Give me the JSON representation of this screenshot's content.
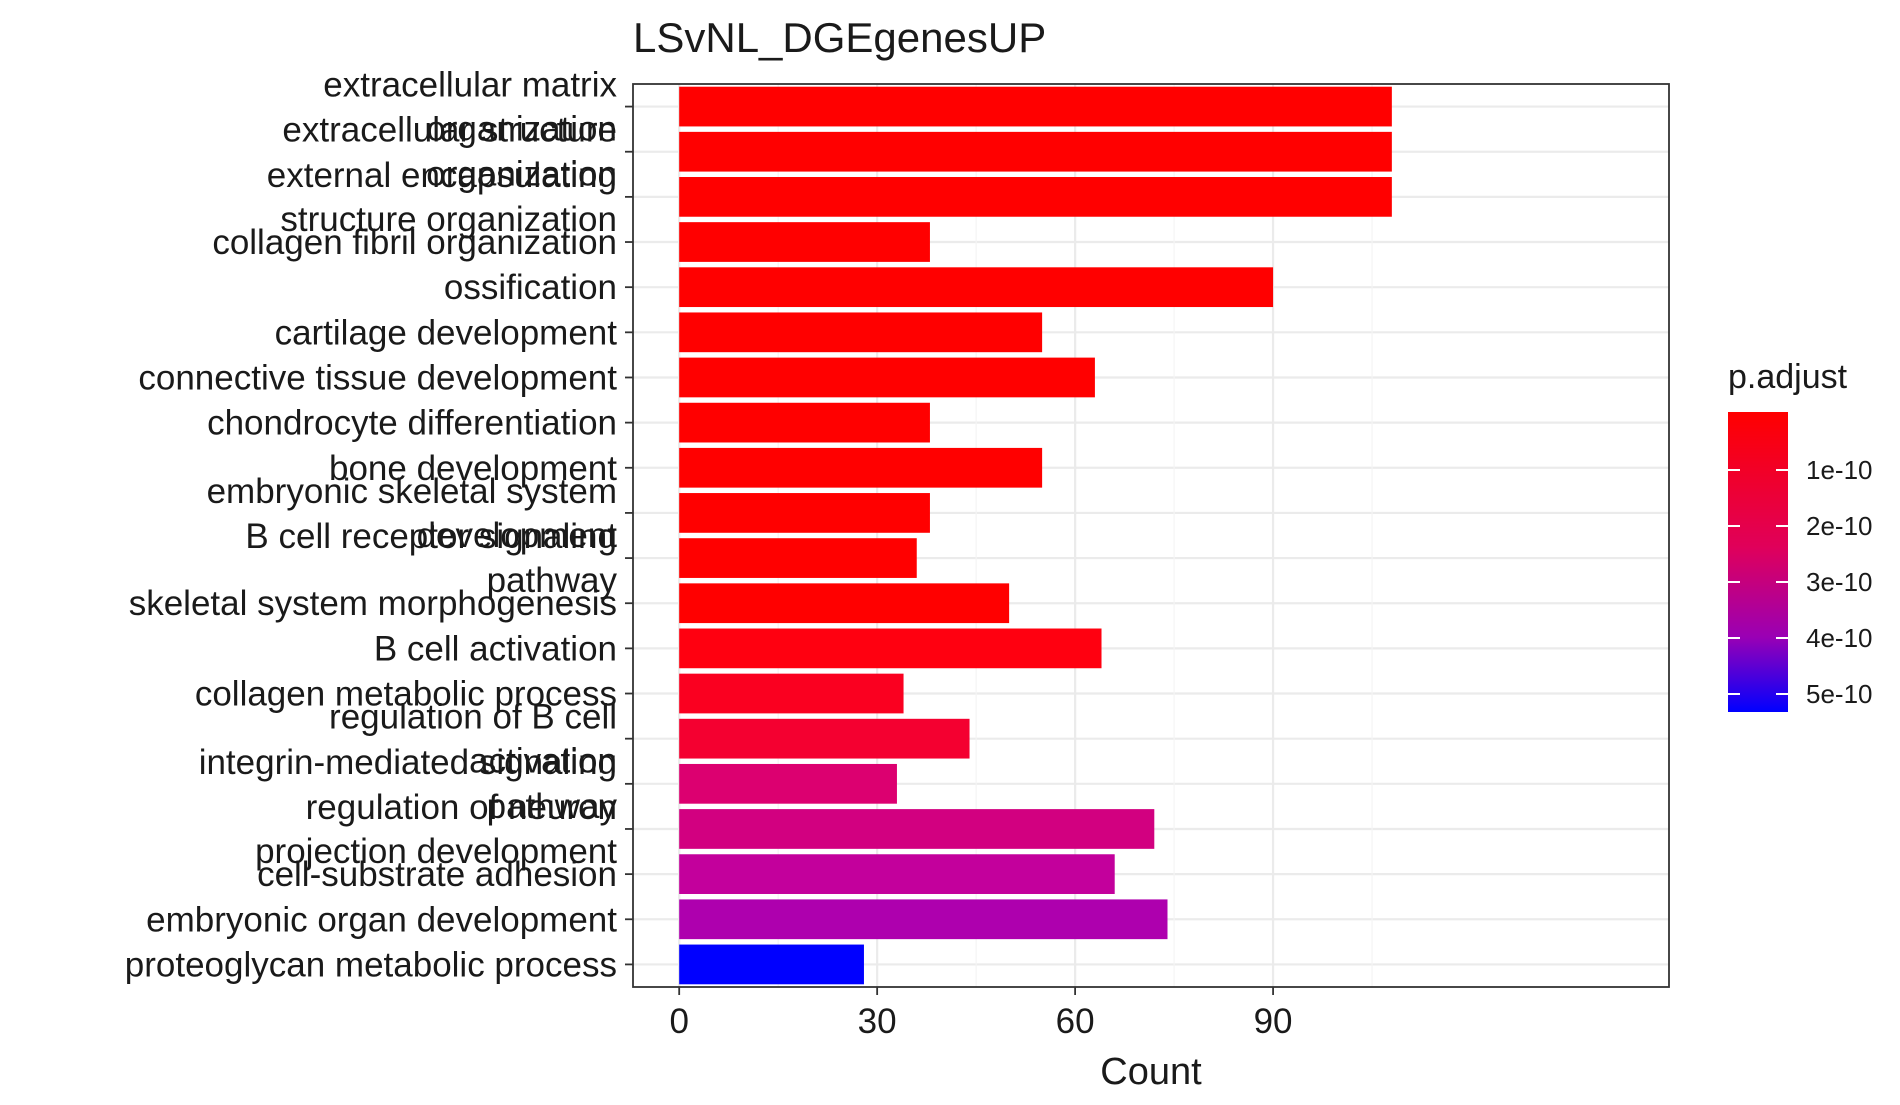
{
  "chart_data": {
    "type": "bar",
    "orientation": "horizontal",
    "title": "LSvNL_DGEgenesUP",
    "xlabel": "Count",
    "ylabel": "",
    "xlim": [
      -7,
      150
    ],
    "xticks": [
      0,
      30,
      60,
      90
    ],
    "grid": true,
    "categories": [
      "extracellular matrix organization",
      "extracellular structure organization",
      "external encapsulating structure organization",
      "collagen fibril organization",
      "ossification",
      "cartilage development",
      "connective tissue development",
      "chondrocyte differentiation",
      "bone development",
      "embryonic skeletal system development",
      "B cell receptor signaling pathway",
      "skeletal system morphogenesis",
      "B cell activation",
      "collagen metabolic process",
      "regulation of B cell activation",
      "integrin-mediated signaling pathway",
      "regulation of neuron projection development",
      "cell-substrate adhesion",
      "embryonic organ development",
      "proteoglycan metabolic process"
    ],
    "values": [
      108,
      108,
      108,
      38,
      90,
      55,
      63,
      38,
      55,
      38,
      36,
      50,
      64,
      34,
      44,
      33,
      72,
      66,
      74,
      28
    ],
    "colors": [
      "#ff0000",
      "#ff0000",
      "#ff0000",
      "#ff0000",
      "#ff0000",
      "#ff0000",
      "#ff0000",
      "#ff0000",
      "#ff0000",
      "#ff0000",
      "#ff0000",
      "#ff0000",
      "#ff0010",
      "#fa0020",
      "#f40030",
      "#dc0070",
      "#d20080",
      "#c3009c",
      "#ae00ae",
      "#0000ff"
    ],
    "legend": {
      "title": "p.adjust",
      "position": "right",
      "labels": [
        "1e-10",
        "2e-10",
        "3e-10",
        "4e-10",
        "5e-10"
      ],
      "gradient_top": "#ff0000",
      "gradient_bottom": "#0000ff"
    }
  }
}
